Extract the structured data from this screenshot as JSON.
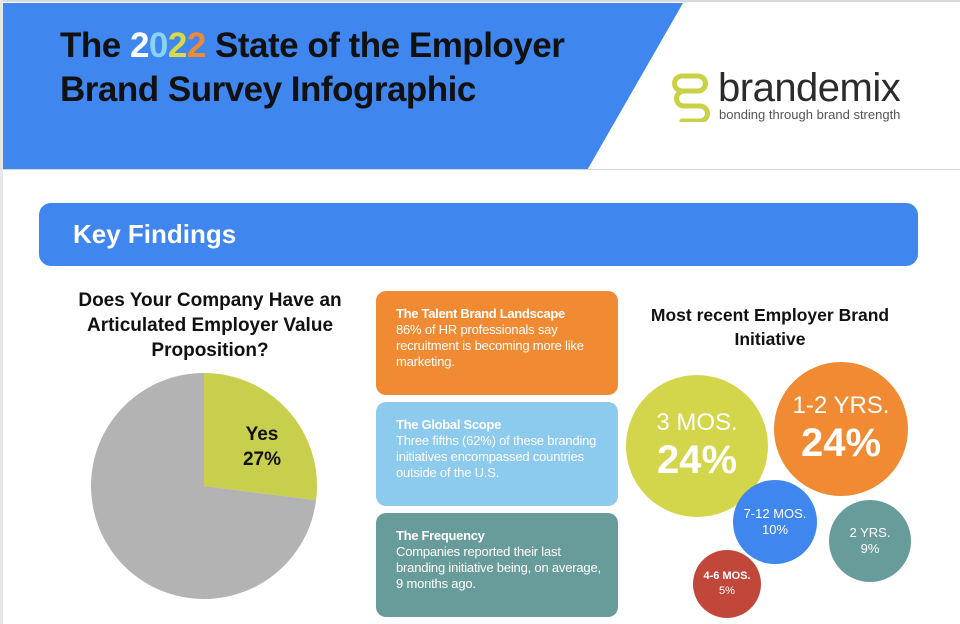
{
  "header": {
    "title_prefix": "The ",
    "year_digits": [
      {
        "char": "2",
        "color": "#ffffff"
      },
      {
        "char": "0",
        "color": "#8ad2f5"
      },
      {
        "char": "2",
        "color": "#d8db47"
      },
      {
        "char": "2",
        "color": "#f08a33"
      }
    ],
    "title_rest": " State of the Employer",
    "title_line2": "Brand Survey Infographic",
    "band_color": "#3f86ee"
  },
  "logo": {
    "word": "brandemix",
    "tagline": "bonding through brand strength",
    "mark_color": "#c9d245"
  },
  "key_findings": {
    "title": "Key Findings"
  },
  "evp_question": {
    "title": "Does Your Company Have an Articulated Employer Value Proposition?",
    "chart_data": {
      "type": "pie",
      "slices": [
        {
          "label": "Yes",
          "value": 27,
          "color": "#c8cf4d"
        },
        {
          "label": "",
          "value": 73,
          "color": "#b3b3b3"
        }
      ],
      "data_label": {
        "label": "Yes",
        "value": "27%"
      }
    }
  },
  "cards": [
    {
      "title": "The Talent Brand Landscape",
      "body": "86% of HR professionals say recruitment is becoming more like marketing.",
      "color": "#f08a33"
    },
    {
      "title": "The Global Scope",
      "body": "Three fifths (62%) of these branding initiatives encompassed countries outside of the U.S.",
      "color": "#8ccaee"
    },
    {
      "title": "The Frequency",
      "body": "Companies reported their last branding initiative being, on average, 9 months ago.",
      "color": "#689c9a"
    }
  ],
  "initiative": {
    "title": "Most recent Employer Brand Initiative",
    "bubbles": [
      {
        "label": "3 MOS.",
        "value": "24%",
        "color": "#d3d64a"
      },
      {
        "label": "1-2 YRS.",
        "value": "24%",
        "color": "#f08a33"
      },
      {
        "label": "7-12 MOS.",
        "value": "10%",
        "color": "#3f86ee"
      },
      {
        "label": "2 YRS.",
        "value": "9%",
        "color": "#689c9a"
      },
      {
        "label": "4-6 MOS.",
        "value": "5%",
        "color": "#c0473a"
      }
    ]
  }
}
